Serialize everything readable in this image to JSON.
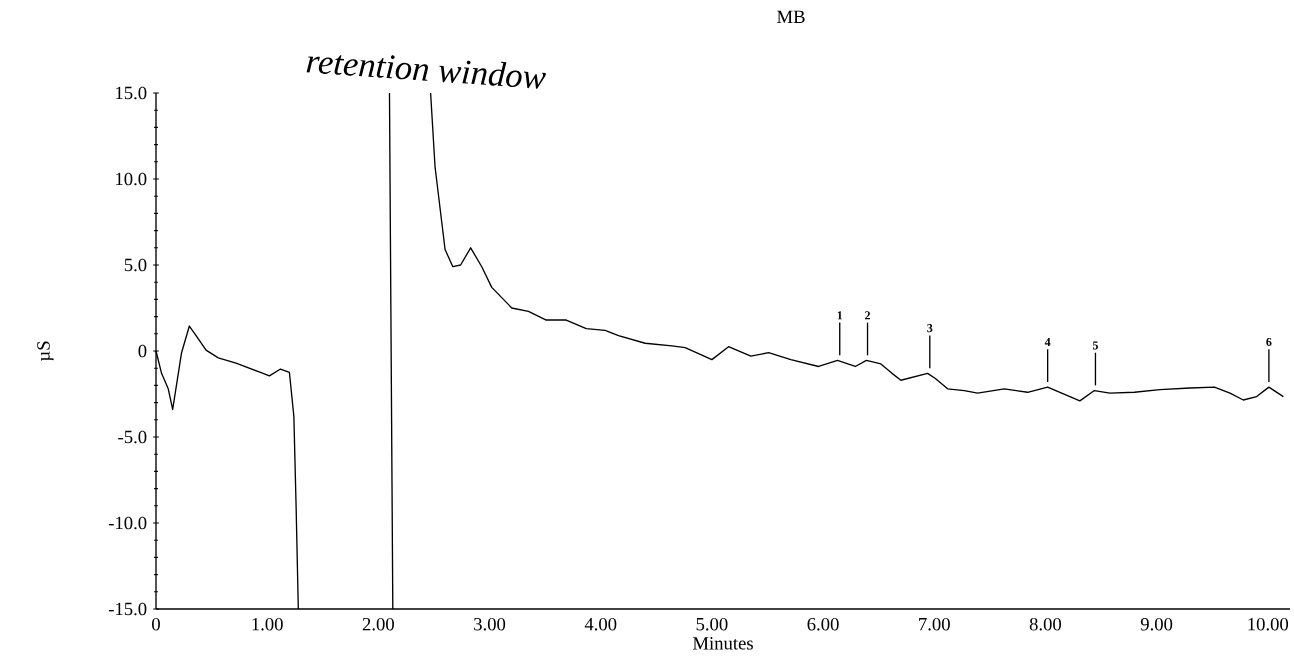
{
  "chart_data": {
    "type": "line",
    "title": "MB",
    "xlabel": "Minutes",
    "ylabel": "µS",
    "annotations": [
      "retention window",
      {
        "text": "1",
        "x": 6.15,
        "y": -0.55
      },
      {
        "text": "2",
        "x": 6.4,
        "y": -0.55
      },
      {
        "text": "3",
        "x": 6.96,
        "y": -1.3
      },
      {
        "text": "4",
        "x": 8.02,
        "y": -2.1
      },
      {
        "text": "5",
        "x": 8.45,
        "y": -2.3
      },
      {
        "text": "6",
        "x": 10.01,
        "y": -2.1
      }
    ],
    "x": [
      0,
      0.05,
      0.11,
      0.15,
      0.23,
      0.3,
      0.37,
      0.45,
      0.56,
      0.72,
      0.94,
      1.02,
      1.12,
      1.2,
      1.24,
      1.26,
      1.28,
      1.7,
      2.1,
      2.13,
      2.3,
      2.47,
      2.51,
      2.6,
      2.67,
      2.74,
      2.83,
      2.93,
      3.02,
      3.2,
      3.35,
      3.51,
      3.69,
      3.87,
      4.04,
      4.16,
      4.4,
      4.64,
      4.76,
      5.0,
      5.15,
      5.35,
      5.51,
      5.71,
      5.96,
      6.13,
      6.29,
      6.39,
      6.52,
      6.62,
      6.7,
      6.82,
      6.94,
      7.01,
      7.12,
      7.27,
      7.39,
      7.63,
      7.84,
      8.02,
      8.13,
      8.31,
      8.44,
      8.58,
      8.8,
      9.03,
      9.3,
      9.52,
      9.66,
      9.78,
      9.9,
      10.01,
      10.14
    ],
    "values": [
      0,
      -1.3,
      -2.2,
      -3.4,
      -0.1,
      1.45,
      0.8,
      0.05,
      -0.4,
      -0.7,
      -1.25,
      -1.45,
      -1.05,
      -1.25,
      -3.8,
      -9.0,
      -15,
      null,
      15,
      -15,
      null,
      15,
      10.7,
      5.9,
      4.9,
      5.0,
      6.0,
      4.9,
      3.7,
      2.5,
      2.3,
      1.8,
      1.8,
      1.3,
      1.2,
      0.9,
      0.45,
      0.3,
      0.2,
      -0.5,
      0.25,
      -0.3,
      -0.1,
      -0.5,
      -0.9,
      -0.55,
      -0.9,
      -0.55,
      -0.75,
      -1.3,
      -1.7,
      -1.5,
      -1.3,
      -1.6,
      -2.2,
      -2.3,
      -2.45,
      -2.2,
      -2.4,
      -2.1,
      -2.4,
      -2.9,
      -2.3,
      -2.45,
      -2.4,
      -2.25,
      -2.15,
      -2.1,
      -2.45,
      -2.85,
      -2.65,
      -2.1,
      -2.65
    ],
    "color": "#000000",
    "marker": "none",
    "line_style": "solid",
    "xlim": [
      0,
      10.2
    ],
    "ylim": [
      -15,
      15
    ],
    "xticks": [
      0,
      {
        "value": 1,
        "label": "1.00"
      },
      {
        "value": 2,
        "label": "2.00"
      },
      {
        "value": 3,
        "label": "3.00"
      },
      {
        "value": 4,
        "label": "4.00"
      },
      {
        "value": 5,
        "label": "5.00"
      },
      {
        "value": 6,
        "label": "6.00"
      },
      {
        "value": 7,
        "label": "7.00"
      },
      {
        "value": 8,
        "label": "8.00"
      },
      {
        "value": 9,
        "label": "9.00"
      },
      {
        "value": 10,
        "label": "10.00"
      }
    ],
    "yticks": [
      {
        "value": -15,
        "label": "-15.0"
      },
      {
        "value": -10,
        "label": "-10.0"
      },
      {
        "value": -5,
        "label": "-5.0"
      },
      0,
      {
        "value": 5,
        "label": "5.0"
      },
      {
        "value": 10,
        "label": "10.0"
      },
      {
        "value": 15,
        "label": "15.0"
      }
    ]
  }
}
